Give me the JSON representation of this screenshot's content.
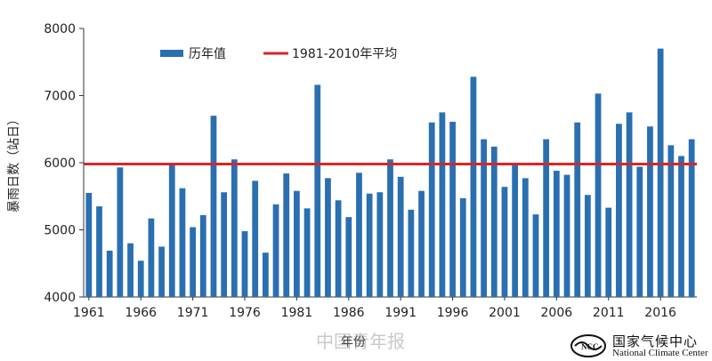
{
  "chart_data": {
    "type": "bar",
    "ylabel": "暴雨日数（站日）",
    "xlabel": "年份",
    "ylim": [
      4000,
      8000
    ],
    "yticks": [
      4000,
      5000,
      6000,
      7000,
      8000
    ],
    "xtick_labels": [
      "1961",
      "1966",
      "1971",
      "1976",
      "1981",
      "1986",
      "1991",
      "1996",
      "2001",
      "2006",
      "2011",
      "2016"
    ],
    "x": [
      1961,
      1962,
      1963,
      1964,
      1965,
      1966,
      1967,
      1968,
      1969,
      1970,
      1971,
      1972,
      1973,
      1974,
      1975,
      1976,
      1977,
      1978,
      1979,
      1980,
      1981,
      1982,
      1983,
      1984,
      1985,
      1986,
      1987,
      1988,
      1989,
      1990,
      1991,
      1992,
      1993,
      1994,
      1995,
      1996,
      1997,
      1998,
      1999,
      2000,
      2001,
      2002,
      2003,
      2004,
      2005,
      2006,
      2007,
      2008,
      2009,
      2010,
      2011,
      2012,
      2013,
      2014,
      2015,
      2016,
      2017,
      2018,
      2019
    ],
    "series": [
      {
        "name": "历年值",
        "color": "#2a6fb0",
        "values": [
          5550,
          5350,
          4690,
          5930,
          4800,
          4540,
          5170,
          4750,
          5980,
          5620,
          5040,
          5220,
          6700,
          5560,
          6050,
          4980,
          5730,
          4660,
          5380,
          5840,
          5580,
          5320,
          7160,
          5770,
          5440,
          5190,
          5850,
          5540,
          5560,
          6050,
          5790,
          5300,
          5580,
          6600,
          6750,
          6610,
          5470,
          7280,
          6350,
          6240,
          5640,
          5960,
          5770,
          5230,
          6350,
          5880,
          5820,
          6600,
          5520,
          7030,
          5330,
          6580,
          6750,
          5940,
          6540,
          7700,
          6260,
          6100,
          6350
        ]
      }
    ],
    "reference_line": {
      "name": "1981-2010年平均",
      "value": 5980,
      "color": "#d7262b"
    },
    "legend": {
      "position": "top-left"
    },
    "grid": false
  },
  "watermark": "中国青年报",
  "logo": {
    "name_cn": "国家气候中心",
    "name_en": "National Climate Center"
  }
}
